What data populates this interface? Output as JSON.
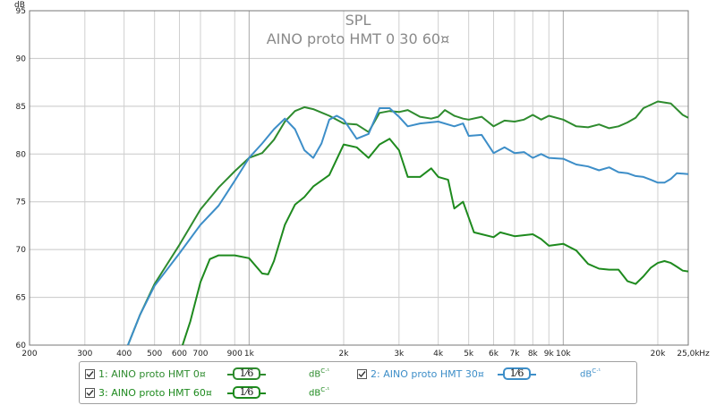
{
  "chart_data": {
    "type": "line",
    "title": "SPL",
    "subtitle": "AINO proto HMT 0 30 60¤",
    "ylabel": "dB",
    "xlabel": "Hz",
    "x_scale": "log",
    "xlim": [
      200,
      25000
    ],
    "ylim": [
      60,
      95
    ],
    "grid": true,
    "y_ticks": [
      "60",
      "65",
      "70",
      "75",
      "80",
      "85",
      "90",
      "95"
    ],
    "x_ticks": [
      {
        "v": 200,
        "l": "200"
      },
      {
        "v": 300,
        "l": "300"
      },
      {
        "v": 400,
        "l": "400"
      },
      {
        "v": 500,
        "l": "500"
      },
      {
        "v": 600,
        "l": "600"
      },
      {
        "v": 700,
        "l": "700"
      },
      {
        "v": 900,
        "l": "900"
      },
      {
        "v": 1000,
        "l": "1k"
      },
      {
        "v": 2000,
        "l": "2k"
      },
      {
        "v": 3000,
        "l": "3k"
      },
      {
        "v": 4000,
        "l": "4k"
      },
      {
        "v": 5000,
        "l": "5k"
      },
      {
        "v": 6000,
        "l": "6k"
      },
      {
        "v": 7000,
        "l": "7k"
      },
      {
        "v": 8000,
        "l": "8k"
      },
      {
        "v": 9000,
        "l": "9k"
      },
      {
        "v": 10000,
        "l": "10k"
      },
      {
        "v": 20000,
        "l": "20k"
      },
      {
        "v": 25000,
        "l": "25,0k"
      }
    ],
    "series": [
      {
        "name": "AINO proto HMT 0¤",
        "color": "#2e8b2e",
        "points": [
          [
            400,
            59
          ],
          [
            450,
            63.2
          ],
          [
            500,
            66.4
          ],
          [
            600,
            70.5
          ],
          [
            700,
            74.2
          ],
          [
            800,
            76.5
          ],
          [
            900,
            78.2
          ],
          [
            1000,
            79.6
          ],
          [
            1100,
            80.1
          ],
          [
            1200,
            81.5
          ],
          [
            1300,
            83.4
          ],
          [
            1400,
            84.5
          ],
          [
            1500,
            84.9
          ],
          [
            1600,
            84.7
          ],
          [
            1800,
            84.0
          ],
          [
            2000,
            83.2
          ],
          [
            2200,
            83.1
          ],
          [
            2400,
            82.3
          ],
          [
            2600,
            84.3
          ],
          [
            2800,
            84.5
          ],
          [
            3000,
            84.4
          ],
          [
            3200,
            84.6
          ],
          [
            3500,
            83.9
          ],
          [
            3800,
            83.7
          ],
          [
            4000,
            83.9
          ],
          [
            4200,
            84.6
          ],
          [
            4500,
            84.0
          ],
          [
            4800,
            83.7
          ],
          [
            5000,
            83.6
          ],
          [
            5500,
            83.9
          ],
          [
            6000,
            82.9
          ],
          [
            6500,
            83.5
          ],
          [
            7000,
            83.4
          ],
          [
            7500,
            83.6
          ],
          [
            8000,
            84.1
          ],
          [
            8500,
            83.6
          ],
          [
            9000,
            84.0
          ],
          [
            10000,
            83.6
          ],
          [
            11000,
            82.9
          ],
          [
            12000,
            82.8
          ],
          [
            13000,
            83.1
          ],
          [
            14000,
            82.7
          ],
          [
            15000,
            82.9
          ],
          [
            16000,
            83.3
          ],
          [
            17000,
            83.8
          ],
          [
            18000,
            84.8
          ],
          [
            20000,
            85.5
          ],
          [
            22000,
            85.3
          ],
          [
            24000,
            84.1
          ],
          [
            25000,
            83.8
          ]
        ]
      },
      {
        "name": "AINO proto HMT 30¤",
        "color": "#3d8ec8",
        "points": [
          [
            400,
            59
          ],
          [
            450,
            63.2
          ],
          [
            500,
            66.2
          ],
          [
            600,
            69.6
          ],
          [
            700,
            72.6
          ],
          [
            800,
            74.6
          ],
          [
            900,
            77.2
          ],
          [
            1000,
            79.6
          ],
          [
            1100,
            81.1
          ],
          [
            1200,
            82.6
          ],
          [
            1300,
            83.7
          ],
          [
            1400,
            82.6
          ],
          [
            1500,
            80.4
          ],
          [
            1600,
            79.6
          ],
          [
            1700,
            81.1
          ],
          [
            1800,
            83.6
          ],
          [
            1900,
            84.0
          ],
          [
            2000,
            83.6
          ],
          [
            2200,
            81.6
          ],
          [
            2400,
            82.1
          ],
          [
            2600,
            84.8
          ],
          [
            2800,
            84.8
          ],
          [
            3000,
            83.9
          ],
          [
            3200,
            82.9
          ],
          [
            3500,
            83.2
          ],
          [
            4000,
            83.4
          ],
          [
            4500,
            82.9
          ],
          [
            4800,
            83.2
          ],
          [
            5000,
            81.9
          ],
          [
            5500,
            82.0
          ],
          [
            6000,
            80.1
          ],
          [
            6500,
            80.7
          ],
          [
            7000,
            80.1
          ],
          [
            7500,
            80.2
          ],
          [
            8000,
            79.6
          ],
          [
            8500,
            80.0
          ],
          [
            9000,
            79.6
          ],
          [
            10000,
            79.5
          ],
          [
            11000,
            78.9
          ],
          [
            12000,
            78.7
          ],
          [
            13000,
            78.3
          ],
          [
            14000,
            78.6
          ],
          [
            15000,
            78.1
          ],
          [
            16000,
            78.0
          ],
          [
            17000,
            77.7
          ],
          [
            18000,
            77.6
          ],
          [
            19000,
            77.3
          ],
          [
            20000,
            77.0
          ],
          [
            21000,
            77.0
          ],
          [
            22000,
            77.4
          ],
          [
            23000,
            78.0
          ],
          [
            25000,
            77.9
          ]
        ]
      },
      {
        "name": "AINO proto HMT 60¤",
        "color": "#1e8a1e",
        "points": [
          [
            600,
            59
          ],
          [
            650,
            62.5
          ],
          [
            700,
            66.6
          ],
          [
            750,
            69.0
          ],
          [
            800,
            69.4
          ],
          [
            900,
            69.4
          ],
          [
            1000,
            69.1
          ],
          [
            1100,
            67.5
          ],
          [
            1150,
            67.4
          ],
          [
            1200,
            68.8
          ],
          [
            1300,
            72.6
          ],
          [
            1400,
            74.7
          ],
          [
            1500,
            75.5
          ],
          [
            1600,
            76.6
          ],
          [
            1800,
            77.8
          ],
          [
            2000,
            81.0
          ],
          [
            2200,
            80.7
          ],
          [
            2400,
            79.6
          ],
          [
            2600,
            81.0
          ],
          [
            2800,
            81.6
          ],
          [
            3000,
            80.4
          ],
          [
            3200,
            77.6
          ],
          [
            3500,
            77.6
          ],
          [
            3800,
            78.5
          ],
          [
            4000,
            77.6
          ],
          [
            4300,
            77.3
          ],
          [
            4500,
            74.3
          ],
          [
            4800,
            75.0
          ],
          [
            5200,
            71.8
          ],
          [
            5500,
            71.6
          ],
          [
            6000,
            71.3
          ],
          [
            6300,
            71.8
          ],
          [
            7000,
            71.4
          ],
          [
            8000,
            71.6
          ],
          [
            8500,
            71.1
          ],
          [
            9000,
            70.4
          ],
          [
            10000,
            70.6
          ],
          [
            11000,
            69.9
          ],
          [
            12000,
            68.5
          ],
          [
            13000,
            68.0
          ],
          [
            14000,
            67.9
          ],
          [
            15000,
            67.9
          ],
          [
            16000,
            66.7
          ],
          [
            17000,
            66.4
          ],
          [
            18000,
            67.2
          ],
          [
            19000,
            68.1
          ],
          [
            20000,
            68.6
          ],
          [
            21000,
            68.8
          ],
          [
            22000,
            68.6
          ],
          [
            23000,
            68.2
          ],
          [
            24000,
            67.8
          ],
          [
            25000,
            67.7
          ]
        ]
      }
    ]
  },
  "legend": {
    "items": [
      {
        "label": "1: AINO proto HMT 0¤",
        "smoothing": "1⁄6",
        "unit": "dB",
        "unit_sup": "C·¹",
        "color": "#2e8b2e"
      },
      {
        "label": "2: AINO proto HMT 30¤",
        "smoothing": "1⁄6",
        "unit": "dB",
        "unit_sup": "C·¹",
        "color": "#3d8ec8"
      },
      {
        "label": "3: AINO proto HMT 60¤",
        "smoothing": "1⁄6",
        "unit": "dB",
        "unit_sup": "C·¹",
        "color": "#1e8a1e"
      }
    ]
  }
}
